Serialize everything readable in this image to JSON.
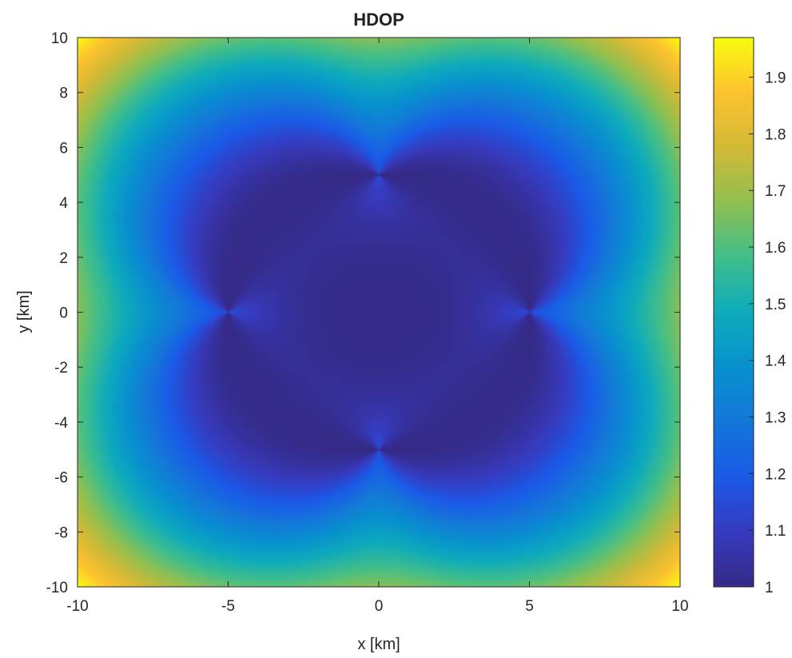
{
  "chart_data": {
    "type": "heatmap",
    "title": "HDOP",
    "xlabel": "x [km]",
    "ylabel": "y [km]",
    "xlim": [
      -10,
      10
    ],
    "ylim": [
      -10,
      10
    ],
    "xticks": [
      -10,
      -5,
      0,
      5,
      10
    ],
    "yticks": [
      -10,
      -8,
      -6,
      -4,
      -2,
      0,
      2,
      4,
      6,
      8,
      10
    ],
    "xtick_labels": [
      "-10",
      "-5",
      "0",
      "5",
      "10"
    ],
    "ytick_labels": [
      "-10",
      "-8",
      "-6",
      "-4",
      "-2",
      "0",
      "2",
      "4",
      "6",
      "8",
      "10"
    ],
    "colorbar": {
      "range": [
        1,
        1.97
      ],
      "ticks": [
        1,
        1.1,
        1.2,
        1.3,
        1.4,
        1.5,
        1.6,
        1.7,
        1.8,
        1.9
      ],
      "tick_labels": [
        "1",
        "1.1",
        "1.2",
        "1.3",
        "1.4",
        "1.5",
        "1.6",
        "1.7",
        "1.8",
        "1.9"
      ],
      "colormap": "parula"
    },
    "anchors_km": [
      [
        0,
        5
      ],
      [
        -5,
        0
      ],
      [
        5,
        0
      ],
      [
        0,
        -5
      ]
    ],
    "grid": false
  }
}
